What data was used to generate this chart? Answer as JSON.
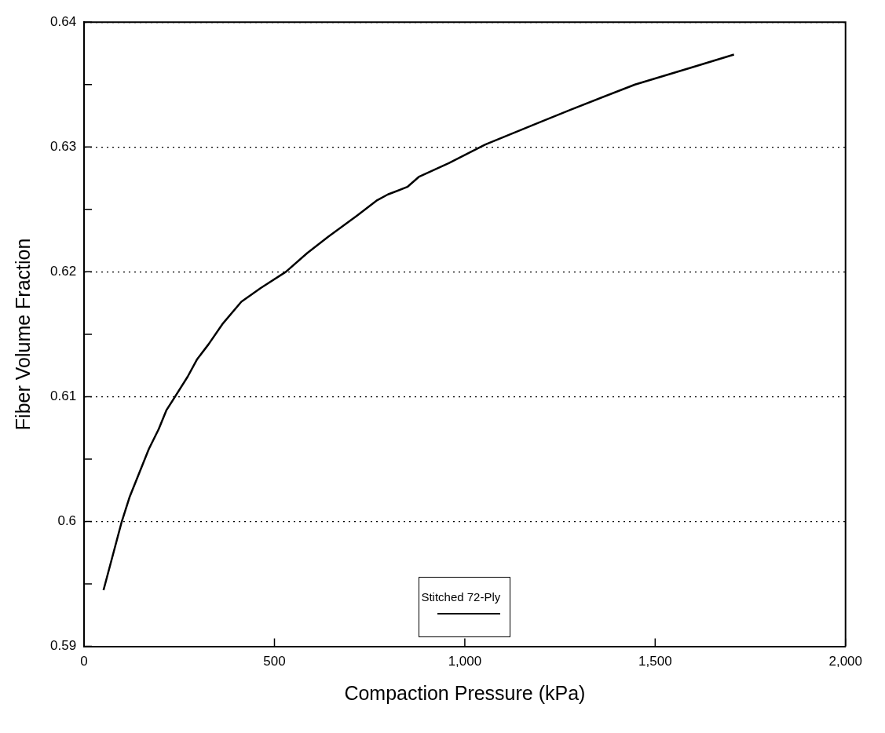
{
  "chart_data": {
    "type": "line",
    "xlabel": "Compaction Pressure (kPa)",
    "ylabel": "Fiber Volume Fraction",
    "xlim": [
      0,
      2000
    ],
    "xticks": [
      {
        "value": 0,
        "label": "0"
      },
      {
        "value": 500,
        "label": "500"
      },
      {
        "value": 1000,
        "label": "1,000"
      },
      {
        "value": 1500,
        "label": "1,500"
      },
      {
        "value": 2000,
        "label": "2,000"
      }
    ],
    "ylim": [
      0.59,
      0.64
    ],
    "yticks": [
      0.59,
      {
        "value": 0.595,
        "label": null
      },
      0.6,
      {
        "value": 0.605,
        "label": null
      },
      0.61,
      {
        "value": 0.615,
        "label": null
      },
      0.62,
      {
        "value": 0.625,
        "label": null
      },
      0.63,
      {
        "value": 0.635,
        "label": null
      },
      0.64
    ],
    "grid": "y",
    "legend": "bottom",
    "marker": "none",
    "line_style": "solid",
    "series": [
      {
        "name": "Stitched 72-Ply",
        "color": "#000000",
        "x": [
          51,
          99,
          120,
          145,
          170,
          196,
          216,
          239,
          272,
          297,
          327,
          363,
          413,
          464,
          530,
          586,
          641,
          717,
          768,
          798,
          849,
          879,
          958,
          1054,
          1190,
          1279,
          1447,
          1599,
          1707
        ],
        "values": [
          0.5945,
          0.6,
          0.602,
          0.6039,
          0.6058,
          0.6074,
          0.6089,
          0.61,
          0.6116,
          0.613,
          0.6142,
          0.6158,
          0.6176,
          0.6187,
          0.62,
          0.6215,
          0.6228,
          0.6245,
          0.6257,
          0.6262,
          0.6268,
          0.6276,
          0.6287,
          0.6302,
          0.6319,
          0.633,
          0.635,
          0.6364,
          0.6374
        ]
      }
    ]
  }
}
